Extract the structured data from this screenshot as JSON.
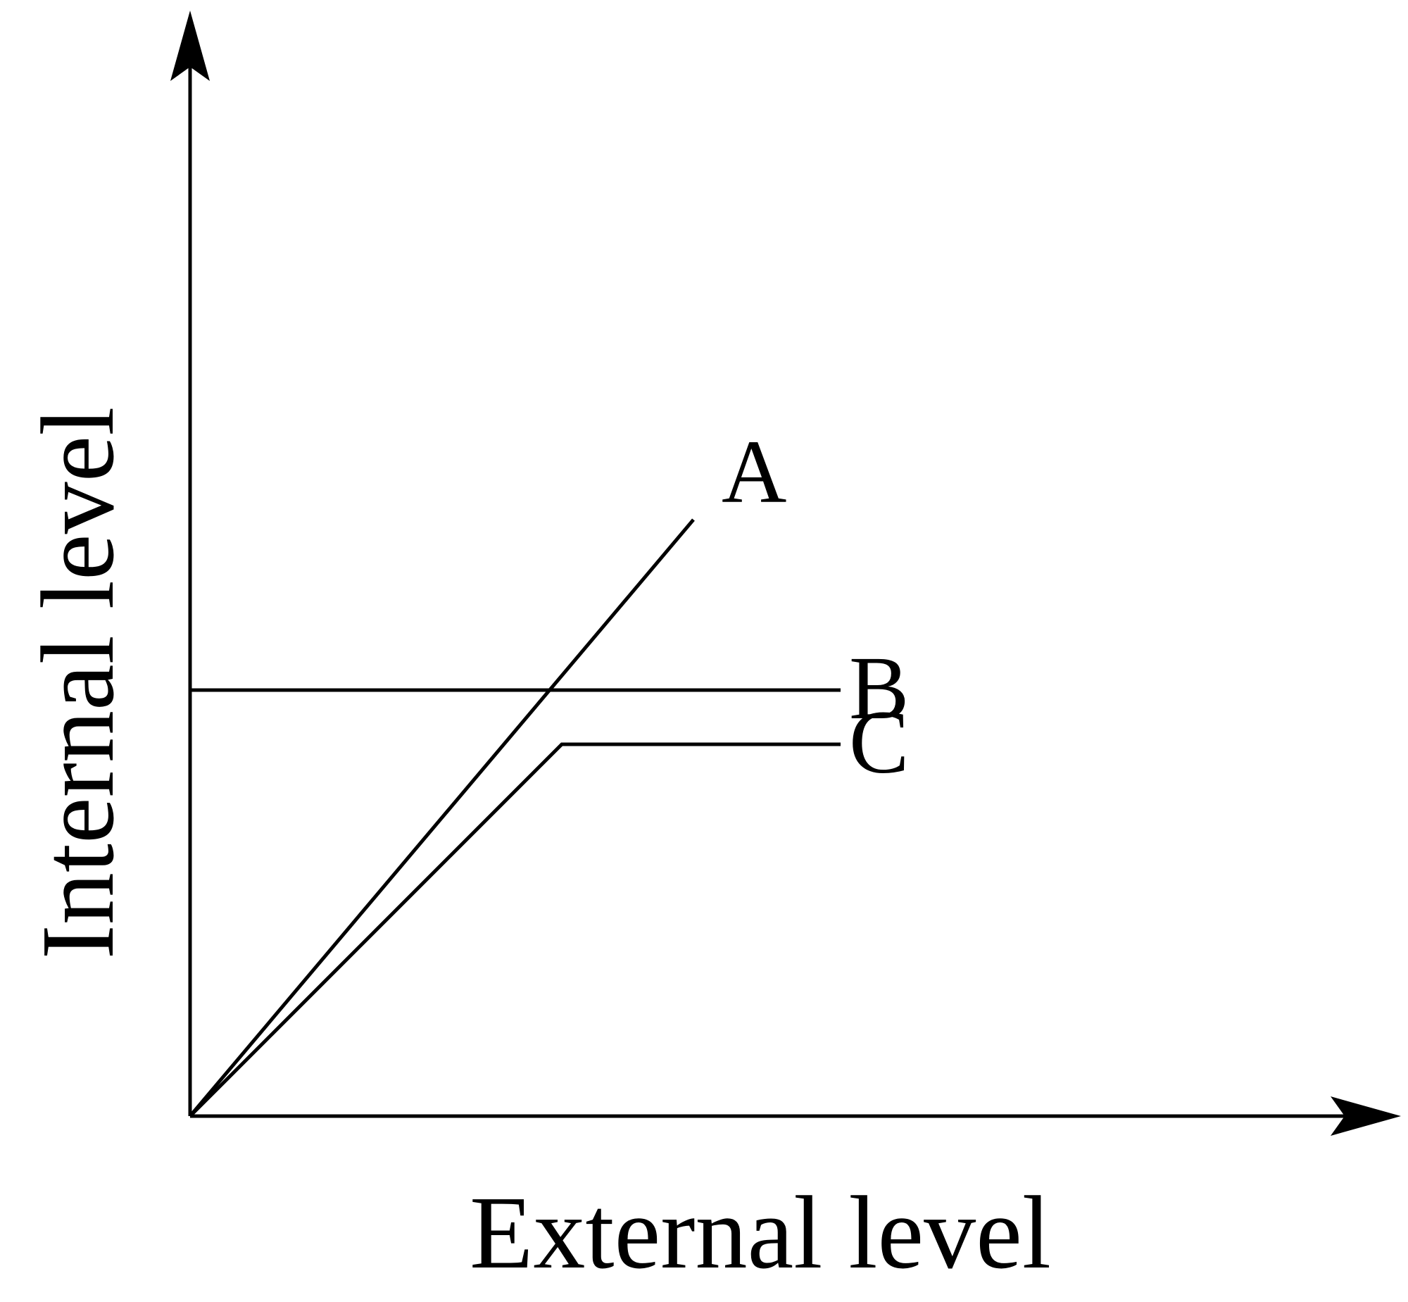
{
  "chart_data": {
    "type": "line",
    "title": "",
    "xlabel": "External level",
    "ylabel": "Internal level",
    "xlim": [
      0,
      1
    ],
    "ylim": [
      0,
      1
    ],
    "grid": false,
    "series": [
      {
        "name": "A",
        "x": [
          0,
          0.65
        ],
        "y": [
          0,
          0.77
        ]
      },
      {
        "name": "B",
        "x": [
          0,
          0.84
        ],
        "y": [
          0.55,
          0.55
        ]
      },
      {
        "name": "C",
        "x": [
          0,
          0.48,
          0.84
        ],
        "y": [
          0,
          0.48,
          0.48
        ]
      }
    ],
    "colors": {
      "line": "#000000",
      "background": "#ffffff"
    }
  }
}
